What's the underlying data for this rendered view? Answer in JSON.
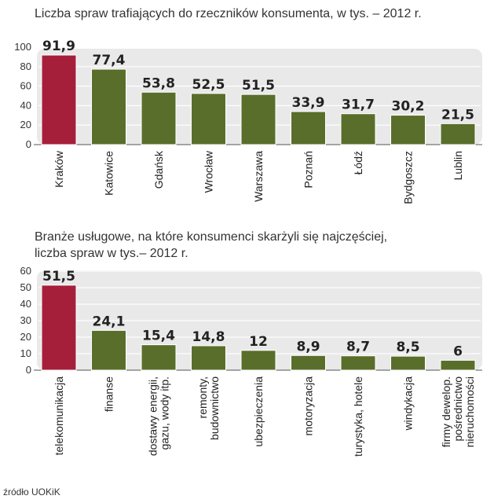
{
  "chart_data": [
    {
      "type": "bar",
      "title": "Liczba spraw trafiających do rzeczników konsumenta, w tys. – 2012 r.",
      "categories": [
        "Kraków",
        "Katowice",
        "Gdańsk",
        "Wrocław",
        "Warszawa",
        "Poznań",
        "Łódź",
        "Bydgoszcz",
        "Lublin"
      ],
      "values": [
        91.9,
        77.4,
        53.8,
        52.5,
        51.5,
        33.9,
        31.7,
        30.2,
        21.5
      ],
      "value_labels": [
        "91,9",
        "77,4",
        "53,8",
        "52,5",
        "51,5",
        "33,9",
        "31,7",
        "30,2",
        "21,5"
      ],
      "ylim": [
        0,
        100
      ],
      "yticks": [
        0,
        20,
        40,
        60,
        80,
        100
      ],
      "grid": true,
      "highlight_index": 0,
      "colors": {
        "highlight": "#a51f3b",
        "bar": "#5a6e2b",
        "panel": "#e9e9e9",
        "grid": "#ffffff"
      }
    },
    {
      "type": "bar",
      "title": [
        "Branże usługowe, na które konsumenci skarżyli się najczęściej,",
        "liczba spraw w tys.– 2012 r."
      ],
      "categories": [
        [
          "telekomunikacja"
        ],
        [
          "finanse"
        ],
        [
          "dostawy energii,",
          "gazu, wody itp."
        ],
        [
          "remonty,",
          "budownictwo"
        ],
        [
          "ubezpieczenia"
        ],
        [
          "motoryzacja"
        ],
        [
          "turystyka, hotele"
        ],
        [
          "windykacja"
        ],
        [
          "firmy dewelop.",
          "pośrednictwo",
          "nieruchomości"
        ]
      ],
      "values": [
        51.5,
        24.1,
        15.4,
        14.8,
        12,
        8.9,
        8.7,
        8.5,
        6
      ],
      "value_labels": [
        "51,5",
        "24,1",
        "15,4",
        "14,8",
        "12",
        "8,9",
        "8,7",
        "8,5",
        "6"
      ],
      "ylim": [
        0,
        60
      ],
      "yticks": [
        0,
        10,
        20,
        30,
        40,
        50,
        60
      ],
      "grid": true,
      "highlight_index": 0,
      "colors": {
        "highlight": "#a51f3b",
        "bar": "#5a6e2b",
        "panel": "#e9e9e9",
        "grid": "#ffffff"
      }
    }
  ],
  "source": "źródło UOKiK"
}
